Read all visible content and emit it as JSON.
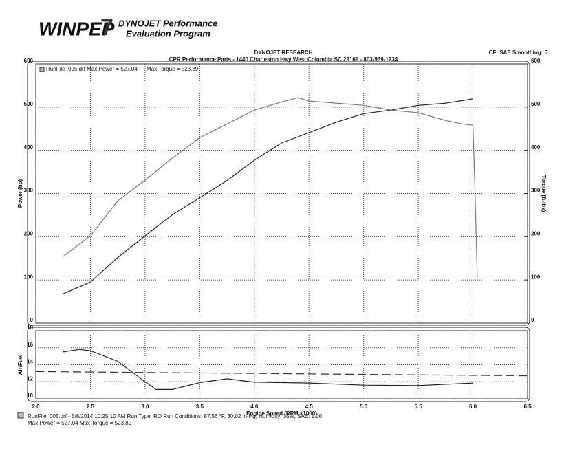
{
  "header": {
    "logo": "WINPEP",
    "logo_mark": "7",
    "line1": "DYNOJET Performance",
    "line2": "Evaluation Program",
    "company": "DYNOJET RESEARCH",
    "shop": "CPR Performance Parts - 1440 Charleston Hwy West Columbia SC 29169 - 803-939-1234",
    "settings": "CF: SAE  Smoothing: 5"
  },
  "chart_data": [
    {
      "type": "line",
      "ylabel": "Power (hp)",
      "y2label": "Torque (ft-lbs)",
      "xlim": [
        2,
        6.5
      ],
      "xticks": [
        {
          "value": 2,
          "label": "2.0"
        },
        2.5,
        {
          "value": 3,
          "label": "3.0"
        },
        3.5,
        {
          "value": 4,
          "label": "4.0"
        },
        4.5,
        {
          "value": 5,
          "label": "5.0"
        },
        5.5,
        {
          "value": 6,
          "label": "6.0"
        },
        6.5
      ],
      "ylim": [
        0,
        600
      ],
      "yticks": [
        0,
        100,
        200,
        300,
        400,
        500,
        600
      ],
      "y2lim": [
        0,
        600
      ],
      "y2ticks": [
        0,
        100,
        200,
        300,
        400,
        500,
        600
      ],
      "grid": true,
      "series": [
        {
          "name": "RunFile_005.drf Max Power = 527.04",
          "color": "#222222",
          "x": [
            2.25,
            2.5,
            2.75,
            3,
            3.25,
            3.5,
            3.75,
            4,
            4.25,
            4.5,
            4.75,
            5,
            5.25,
            5.5,
            5.75,
            6
          ],
          "values": [
            68,
            95,
            152,
            202,
            251,
            290,
            330,
            377,
            417,
            441,
            465,
            485,
            493,
            504,
            509,
            519
          ]
        },
        {
          "name": "Max Torque = 523.89",
          "color": "#777777",
          "axis": "y2",
          "x": [
            2.25,
            2.5,
            2.75,
            3,
            3.25,
            3.5,
            3.75,
            4,
            4.25,
            4.4,
            4.5,
            4.75,
            5,
            5.25,
            5.5,
            5.75,
            5.9,
            6,
            6.02,
            6.04
          ],
          "values": [
            154,
            202,
            283,
            331,
            382,
            429,
            461,
            493,
            512,
            522,
            514,
            509,
            504,
            493,
            487,
            469,
            461,
            458,
            300,
            104
          ]
        }
      ]
    },
    {
      "type": "line",
      "ylabel": "Air/Fuel",
      "xlabel": "Engine Speed (RPM x1000)",
      "xlim": [
        2,
        6.5
      ],
      "xticks": [
        {
          "value": 2,
          "label": "2.0"
        },
        2.5,
        {
          "value": 3,
          "label": "3.0"
        },
        3.5,
        {
          "value": 4,
          "label": "4.0"
        },
        4.5,
        {
          "value": 5,
          "label": "5.0"
        },
        5.5,
        {
          "value": 6,
          "label": "6.0"
        },
        6.5
      ],
      "ylim": [
        10,
        18
      ],
      "yticks": [
        10,
        12,
        14,
        16,
        18
      ],
      "grid": true,
      "series": [
        {
          "color": "#222222",
          "x": [
            2.25,
            2.4,
            2.5,
            2.75,
            3,
            3.1,
            3.25,
            3.5,
            3.75,
            4,
            4.5,
            5,
            5.5,
            6
          ],
          "values": [
            15.5,
            15.8,
            15.65,
            14.4,
            12,
            11.1,
            11.1,
            11.9,
            12.35,
            11.95,
            11.85,
            11.6,
            11.55,
            11.85
          ]
        },
        {
          "color": "#333333",
          "dashed": true,
          "x": [
            2,
            6.5
          ],
          "values": [
            13.2,
            12.7
          ]
        }
      ]
    }
  ],
  "footer": {
    "line1": "RunFile_005.drf - 5/8/2014 10:25:10 AM  Run Type: RO  Run Conditions: 87.56 °F, 30.02 in-Hg,  Humidity: 35%,  SAE: 1.00",
    "line2": "Max Power = 527.04  Max Torque = 523.89"
  }
}
